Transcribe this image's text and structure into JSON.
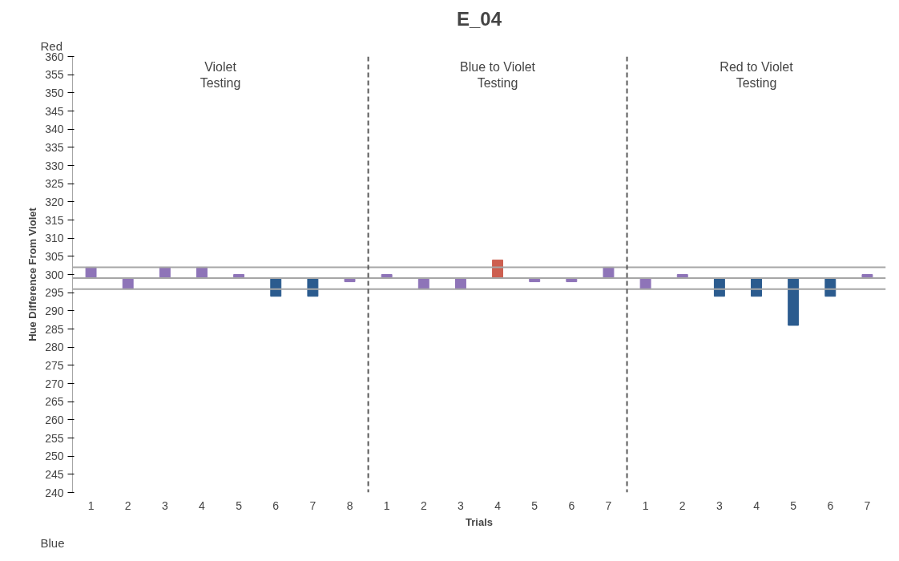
{
  "chart_data": {
    "type": "bar",
    "title": "E_04",
    "xlabel": "Trials",
    "ylabel": "Hue Difference From Violet",
    "annotations": [
      "Red",
      "Blue",
      "Violet Testing",
      "Blue to Violet Testing",
      "Red to Violet Testing"
    ],
    "categories": [
      "1",
      "2",
      "3",
      "4",
      "5",
      "6",
      "7",
      "8",
      "1",
      "2",
      "3",
      "4",
      "5",
      "6",
      "7",
      "1",
      "2",
      "3",
      "4",
      "5",
      "6",
      "7"
    ],
    "base": [
      299,
      299,
      299,
      299,
      299,
      299,
      299,
      299,
      299,
      299,
      299,
      299,
      299,
      299,
      299,
      299,
      299,
      299,
      299,
      299,
      299,
      299
    ],
    "values": [
      3,
      -3,
      3,
      3,
      1,
      -5,
      -5,
      -1,
      1,
      -3,
      -3,
      5,
      -1,
      -1,
      3,
      -3,
      1,
      -5,
      -5,
      -13,
      -5,
      1
    ],
    "colors": [
      "#8e74b8",
      "#8e74b8",
      "#8e74b8",
      "#8e74b8",
      "#8e74b8",
      "#2b5b8e",
      "#2b5b8e",
      "#8e74b8",
      "#8e74b8",
      "#8e74b8",
      "#8e74b8",
      "#cd5f50",
      "#8e74b8",
      "#8e74b8",
      "#8e74b8",
      "#8e74b8",
      "#8e74b8",
      "#2b5b8e",
      "#2b5b8e",
      "#2b5b8e",
      "#2b5b8e",
      "#8e74b8"
    ],
    "ylim": [
      240,
      360
    ],
    "yticks": [
      240,
      245,
      250,
      255,
      260,
      265,
      270,
      275,
      280,
      285,
      290,
      295,
      300,
      305,
      310,
      315,
      320,
      325,
      330,
      335,
      340,
      345,
      350,
      355,
      360
    ],
    "ref_lines": [
      {
        "axis": "y",
        "value": 302,
        "color": "#a6a6a6",
        "line_style": "solid"
      },
      {
        "axis": "y",
        "value": 299,
        "color": "#a6a6a6",
        "line_style": "solid"
      },
      {
        "axis": "y",
        "value": 296,
        "color": "#a6a6a6",
        "line_style": "solid"
      }
    ],
    "grid": false
  }
}
